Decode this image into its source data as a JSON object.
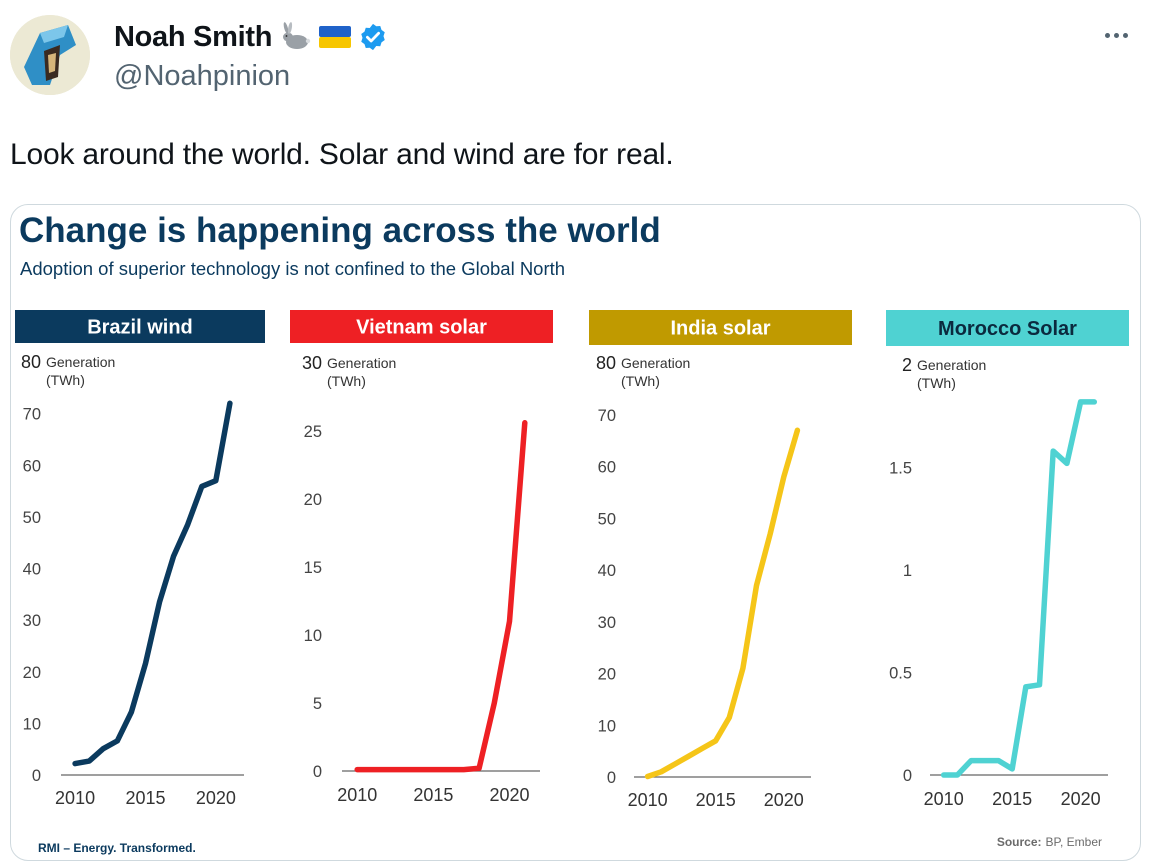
{
  "author": {
    "display_name": "Noah Smith",
    "handle": "@Noahpinion",
    "name_emojis": [
      "rabbit-icon",
      "ukraine-flag-icon"
    ],
    "verified": true
  },
  "tweet": {
    "text": "Look around the world. Solar and wind are for real."
  },
  "colors": {
    "navy": "#0b3a5e",
    "red": "#ee2024",
    "gold": "#c09a00",
    "gold_line": "#f5c518",
    "teal": "#4fd2d2",
    "verified_blue": "#1d9bf0"
  },
  "image": {
    "title": "Change is happening across the world",
    "subtitle": "Adoption of superior technology is not confined to the Global North",
    "footer_left": "RMI – Energy. Transformed.",
    "footer_right_label": "Source:",
    "footer_right_value": "BP, Ember"
  },
  "chart_data": [
    {
      "type": "line",
      "title": "Brazil wind",
      "ylabel": "Generation (TWh)",
      "ylabel_line1": "Generation",
      "ylabel_line2": "(TWh)",
      "color": "#0b3a5e",
      "line_color": "#0b3a5e",
      "x": [
        2010,
        2011,
        2012,
        2013,
        2014,
        2015,
        2016,
        2017,
        2018,
        2019,
        2020,
        2021
      ],
      "values": [
        2.2,
        2.7,
        5.1,
        6.6,
        12.2,
        21.6,
        33.5,
        42.4,
        48.5,
        55.9,
        57.0,
        72.0
      ],
      "ylim": [
        0,
        80
      ],
      "yticks": [
        0,
        10,
        20,
        30,
        40,
        50,
        60,
        70,
        80
      ],
      "xlim": [
        2009,
        2022
      ],
      "xticks": [
        2010,
        2015,
        2020
      ]
    },
    {
      "type": "line",
      "title": "Vietnam solar",
      "ylabel": "Generation (TWh)",
      "ylabel_line1": "Generation",
      "ylabel_line2": "(TWh)",
      "color": "#ee2024",
      "line_color": "#ee2024",
      "x": [
        2010,
        2011,
        2012,
        2013,
        2014,
        2015,
        2016,
        2017,
        2018,
        2019,
        2020,
        2021
      ],
      "values": [
        0.1,
        0.1,
        0.1,
        0.1,
        0.1,
        0.1,
        0.1,
        0.1,
        0.2,
        5.0,
        11.0,
        25.6
      ],
      "ylim": [
        0,
        30
      ],
      "yticks": [
        0,
        5,
        10,
        15,
        20,
        25,
        30
      ],
      "xlim": [
        2009,
        2022
      ],
      "xticks": [
        2010,
        2015,
        2020
      ]
    },
    {
      "type": "line",
      "title": "India solar",
      "ylabel": "Generation (TWh)",
      "ylabel_line1": "Generation",
      "ylabel_line2": "(TWh)",
      "color": "#c09a00",
      "line_color": "#f5c518",
      "x": [
        2010,
        2011,
        2012,
        2013,
        2014,
        2015,
        2016,
        2017,
        2018,
        2019,
        2020,
        2021
      ],
      "values": [
        0.1,
        1.0,
        2.5,
        4.0,
        5.5,
        7.0,
        11.5,
        21.0,
        37.0,
        47.0,
        58.0,
        67.0
      ],
      "ylim": [
        0,
        80
      ],
      "yticks": [
        0,
        10,
        20,
        30,
        40,
        50,
        60,
        70,
        80
      ],
      "xlim": [
        2009,
        2022
      ],
      "xticks": [
        2010,
        2015,
        2020
      ]
    },
    {
      "type": "line",
      "title": "Morocco Solar",
      "ylabel": "Generation (TWh)",
      "ylabel_line1": "Generation",
      "ylabel_line2": "(TWh)",
      "color": "#4fd2d2",
      "line_color": "#4fd2d2",
      "x": [
        2010,
        2011,
        2012,
        2013,
        2014,
        2015,
        2016,
        2017,
        2018,
        2019,
        2020,
        2021
      ],
      "values": [
        0.0,
        0.0,
        0.07,
        0.07,
        0.07,
        0.03,
        0.43,
        0.44,
        1.58,
        1.52,
        1.82,
        1.82
      ],
      "ylim": [
        0,
        2
      ],
      "yticks": [
        0,
        0.5,
        1,
        1.5,
        2
      ],
      "ytick_labels": [
        "0",
        "0.5",
        "1",
        "1.5",
        "2"
      ],
      "xlim": [
        2009,
        2022
      ],
      "xticks": [
        2010,
        2015,
        2020
      ]
    }
  ]
}
